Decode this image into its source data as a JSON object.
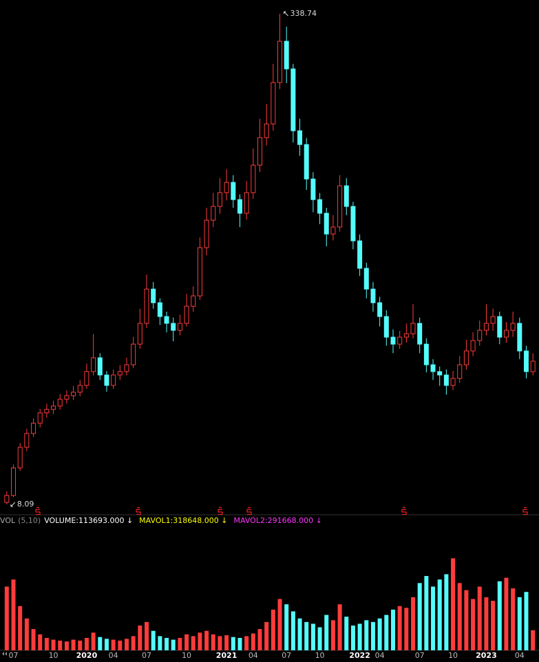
{
  "chart_data": [
    {
      "type": "candlestick",
      "categories": [
        null,
        "07",
        null,
        null,
        null,
        null,
        null,
        "10",
        null,
        null,
        null,
        null,
        "2020",
        null,
        null,
        null,
        "04",
        null,
        null,
        null,
        null,
        "07",
        null,
        null,
        null,
        null,
        null,
        "10",
        null,
        null,
        null,
        null,
        null,
        "2021",
        null,
        null,
        null,
        "04",
        null,
        null,
        null,
        null,
        "07",
        null,
        null,
        null,
        null,
        "10",
        null,
        null,
        null,
        null,
        null,
        "2022",
        null,
        null,
        "04",
        null,
        null,
        null,
        null,
        null,
        "07",
        null,
        null,
        null,
        null,
        "10",
        null,
        null,
        null,
        null,
        "2023",
        null,
        null,
        null,
        null,
        "04",
        null,
        null
      ],
      "open": [
        9.5,
        14.1,
        32.7,
        46.6,
        55.9,
        62.8,
        69.8,
        72.1,
        74.4,
        79.0,
        81.4,
        83.7,
        88.3,
        97.6,
        106.9,
        95.3,
        88.3,
        95.3,
        97.6,
        102.2,
        116.1,
        130.1,
        153.2,
        144.0,
        134.7,
        130.1,
        125.4,
        130.1,
        141.6,
        148.6,
        181.1,
        199.6,
        208.9,
        218.2,
        225.1,
        213.5,
        204.3,
        218.2,
        236.7,
        255.3,
        264.5,
        292.4,
        320.2,
        301.6,
        259.9,
        250.6,
        227.4,
        213.5,
        204.3,
        190.3,
        195.0,
        222.8,
        208.9,
        185.7,
        167.2,
        153.2,
        144.0,
        134.7,
        120.8,
        116.1,
        120.8,
        123.1,
        130.1,
        116.1,
        102.2,
        97.6,
        95.3,
        88.3,
        93.0,
        102.2,
        111.5,
        118.5,
        125.4,
        130.1,
        134.7,
        120.8,
        125.4,
        130.1,
        111.5,
        97.6
      ],
      "high": [
        17.0,
        35.0,
        49.5,
        59.0,
        66.0,
        72.5,
        76.0,
        78.0,
        82.5,
        85.0,
        88.0,
        92.0,
        103.0,
        123.0,
        110.0,
        98.0,
        99.0,
        102.0,
        107.0,
        121.0,
        140.0,
        163.0,
        158.0,
        147.0,
        138.0,
        134.0,
        136.0,
        150.0,
        155.0,
        188.0,
        208.0,
        218.0,
        228.0,
        234.0,
        230.0,
        217.0,
        226.0,
        248.0,
        268.0,
        278.0,
        305.0,
        338.74,
        330.0,
        305.0,
        268.0,
        255.0,
        232.0,
        218.0,
        208.0,
        203.0,
        230.0,
        228.0,
        212.0,
        190.0,
        171.0,
        158.0,
        148.0,
        139.0,
        126.0,
        125.0,
        130.0,
        143.0,
        134.0,
        120.0,
        106.0,
        101.0,
        99.0,
        98.0,
        108.0,
        119.0,
        124.0,
        132.0,
        143.0,
        140.0,
        138.0,
        131.0,
        138.0,
        134.0,
        115.0,
        110.0
      ],
      "low": [
        8.09,
        13.0,
        30.8,
        44.0,
        53.5,
        60.0,
        66.5,
        69.0,
        72.0,
        76.0,
        78.5,
        81.0,
        86.0,
        95.0,
        92.0,
        84.0,
        86.0,
        92.0,
        95.0,
        100.0,
        113.0,
        127.0,
        140.0,
        129.0,
        124.0,
        118.0,
        122.0,
        128.0,
        138.0,
        146.0,
        176.0,
        195.0,
        204.0,
        213.0,
        208.0,
        195.0,
        200.0,
        214.0,
        232.0,
        250.0,
        260.0,
        288.0,
        292.0,
        252.0,
        243.0,
        220.0,
        205.0,
        197.0,
        182.0,
        186.0,
        192.0,
        203.0,
        180.0,
        162.0,
        147.0,
        138.0,
        128.0,
        115.0,
        110.0,
        113.0,
        117.0,
        120.0,
        110.0,
        97.0,
        92.0,
        88.0,
        82.0,
        85.0,
        90.0,
        99.0,
        108.0,
        115.0,
        122.0,
        125.0,
        116.0,
        117.0,
        121.0,
        106.0,
        93.0,
        95.0
      ],
      "close": [
        14.1,
        32.7,
        46.6,
        55.9,
        62.8,
        69.8,
        72.1,
        74.4,
        79.0,
        81.4,
        83.7,
        88.3,
        97.6,
        106.9,
        95.3,
        88.3,
        95.3,
        97.6,
        102.2,
        116.1,
        130.1,
        153.2,
        144.0,
        134.7,
        130.1,
        125.4,
        130.1,
        141.6,
        148.6,
        181.1,
        199.6,
        208.9,
        218.2,
        225.1,
        213.5,
        204.3,
        218.2,
        236.7,
        255.3,
        264.5,
        292.4,
        320.2,
        301.6,
        259.9,
        250.6,
        227.4,
        213.5,
        204.3,
        190.3,
        195.0,
        222.8,
        208.9,
        185.7,
        167.2,
        153.2,
        144.0,
        134.7,
        120.8,
        116.1,
        120.8,
        123.1,
        130.1,
        116.1,
        102.2,
        97.6,
        95.3,
        88.3,
        93.0,
        102.2,
        111.5,
        118.5,
        125.4,
        130.1,
        134.7,
        120.8,
        125.4,
        130.1,
        111.5,
        97.6,
        104.6
      ],
      "ylim": [
        8.09,
        338.74
      ],
      "up_color": "#ff3c3c",
      "down_color": "#54fcfc",
      "high_label": 338.74,
      "low_label": 8.09
    },
    {
      "type": "bar",
      "indicator": "VOL",
      "params": "(5,10)",
      "legend": [
        {
          "text": "VOLUME:113693.000 ↓",
          "color": "#ffffff"
        },
        {
          "text": "MAVOL1:318648.000 ↓",
          "color": "#ffff00"
        },
        {
          "text": "MAVOL2:291668.000 ↓",
          "color": "#ff33ff"
        }
      ],
      "values": [
        360000,
        400000,
        250000,
        180000,
        120000,
        90000,
        70000,
        60000,
        55000,
        50000,
        60000,
        55000,
        70000,
        100000,
        75000,
        65000,
        60000,
        55000,
        65000,
        80000,
        140000,
        160000,
        110000,
        80000,
        70000,
        60000,
        70000,
        90000,
        80000,
        100000,
        110000,
        90000,
        80000,
        85000,
        75000,
        70000,
        80000,
        95000,
        120000,
        160000,
        230000,
        290000,
        260000,
        220000,
        180000,
        160000,
        150000,
        130000,
        200000,
        170000,
        260000,
        190000,
        140000,
        150000,
        170000,
        160000,
        180000,
        200000,
        230000,
        250000,
        240000,
        300000,
        380000,
        420000,
        360000,
        400000,
        430000,
        520000,
        380000,
        340000,
        290000,
        360000,
        300000,
        280000,
        390000,
        410000,
        350000,
        300000,
        330000,
        113693
      ],
      "ylim": [
        0,
        700000
      ]
    }
  ]
}
